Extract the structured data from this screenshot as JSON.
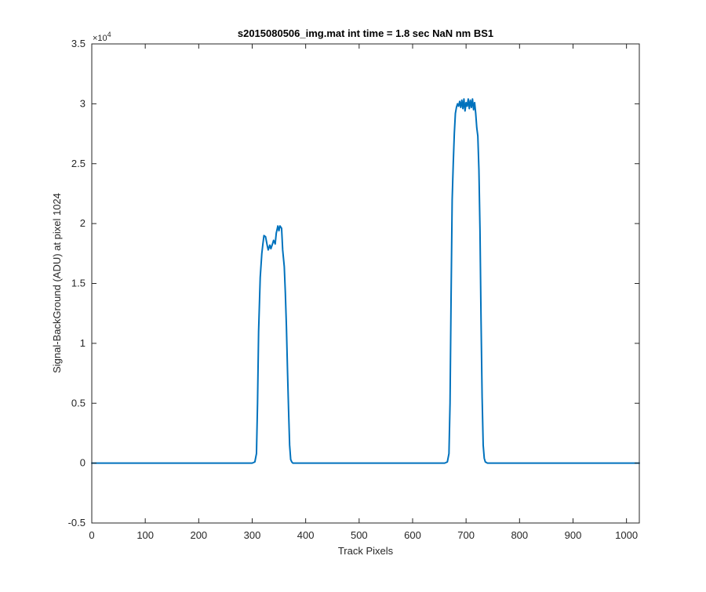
{
  "chart_data": {
    "type": "line",
    "title": "s2015080506_img.mat int time = 1.8 sec  NaN nm BS1",
    "xlabel": "Track Pixels",
    "ylabel": "Signal-BackGround (ADU) at pixel 1024",
    "xlim": [
      0,
      1024
    ],
    "ylim": [
      -5000,
      35000
    ],
    "y_multiplier_label": "×10",
    "y_multiplier_exponent": "4",
    "x_ticks": [
      0,
      100,
      200,
      300,
      400,
      500,
      600,
      700,
      800,
      900,
      1000
    ],
    "x_tick_labels": [
      "0",
      "100",
      "200",
      "300",
      "400",
      "500",
      "600",
      "700",
      "800",
      "900",
      "1000"
    ],
    "y_ticks": [
      -5000,
      0,
      5000,
      10000,
      15000,
      20000,
      25000,
      30000,
      35000
    ],
    "y_tick_labels": [
      "-0.5",
      "0",
      "0.5",
      "1",
      "1.5",
      "2",
      "2.5",
      "3",
      "3.5"
    ],
    "grid": false,
    "line_color": "#0072BD",
    "series": [
      {
        "x": [
          0,
          100,
          200,
          300,
          305,
          308,
          310,
          312,
          315,
          318,
          320,
          322,
          325,
          328,
          330,
          333,
          335,
          338,
          340,
          343,
          345,
          348,
          350,
          352,
          355,
          357,
          360,
          362,
          364,
          366,
          368,
          370,
          372,
          374,
          376,
          380,
          400,
          500,
          600,
          660,
          665,
          668,
          670,
          672,
          674,
          676,
          678,
          680,
          682,
          684,
          686,
          688,
          690,
          692,
          694,
          696,
          698,
          700,
          702,
          704,
          706,
          708,
          710,
          712,
          714,
          716,
          718,
          720,
          722,
          724,
          726,
          728,
          730,
          732,
          734,
          736,
          740,
          800,
          900,
          1024
        ],
        "y": [
          0,
          0,
          0,
          0,
          100,
          800,
          5000,
          11000,
          15500,
          17500,
          18300,
          19000,
          18900,
          18200,
          17800,
          18200,
          17900,
          18300,
          18600,
          18300,
          19200,
          19800,
          19400,
          19800,
          19600,
          17800,
          16400,
          14200,
          11400,
          7800,
          4500,
          1500,
          300,
          100,
          0,
          0,
          0,
          0,
          0,
          0,
          100,
          800,
          5000,
          14000,
          22000,
          25000,
          27500,
          29200,
          29700,
          30000,
          29800,
          30200,
          29700,
          30300,
          29600,
          30400,
          29400,
          30100,
          29800,
          30400,
          29600,
          30300,
          29700,
          30400,
          29500,
          30100,
          29200,
          28000,
          27300,
          24500,
          19500,
          12000,
          5500,
          1500,
          400,
          100,
          0,
          0,
          0,
          0
        ]
      }
    ]
  }
}
